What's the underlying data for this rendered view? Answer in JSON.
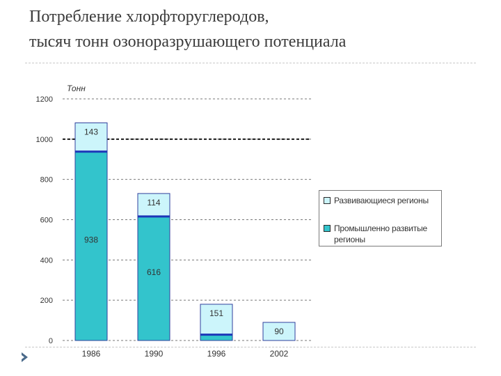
{
  "title": {
    "line1": "Потребление хлорфторуглеродов,",
    "line2": "тысяч тонн озоноразрушающего потенциала"
  },
  "chart_data": {
    "type": "bar",
    "stacked": true,
    "categories": [
      "1986",
      "1990",
      "1996",
      "2002"
    ],
    "series": [
      {
        "name": "Промышленно развитые регионы",
        "values": [
          938,
          616,
          29,
          0
        ],
        "labels": [
          "938",
          "616",
          "",
          ""
        ],
        "color": "#33c4cc"
      },
      {
        "name": "Развивающиеся регионы",
        "values": [
          143,
          114,
          151,
          90
        ],
        "labels": [
          "143",
          "114",
          "151",
          "90"
        ],
        "color": "#ccf5fb"
      }
    ],
    "ylabel": "Тонн",
    "ylim": [
      0,
      1200
    ],
    "yticks": [
      0,
      200,
      400,
      600,
      800,
      1000,
      1200
    ],
    "ytick_labels": [
      "0",
      "200",
      "400",
      "600",
      "800",
      "1000",
      "1200"
    ],
    "reference_line": 1000,
    "grid": true,
    "legend_position": "right",
    "boundary_color": "#1c36b8",
    "outline_color": "#2f3f9c"
  },
  "legend": {
    "items": [
      {
        "label": "Развивающиеся регионы",
        "color": "#ccf5fb"
      },
      {
        "label": "Промышленно развитые регионы",
        "color": "#33c4cc"
      }
    ]
  }
}
